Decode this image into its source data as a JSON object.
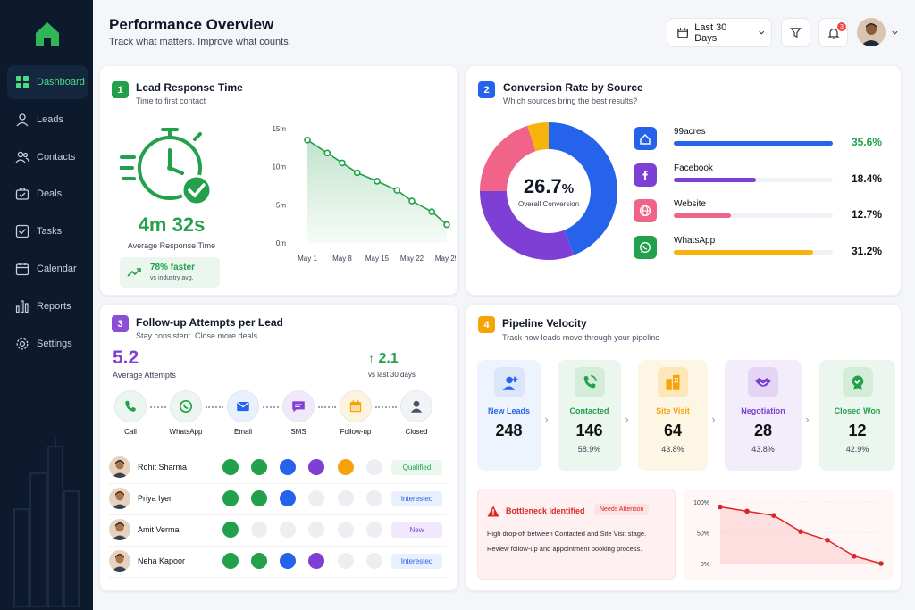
{
  "nav": {
    "items": [
      {
        "label": "Dashboard",
        "icon": "grid-icon",
        "active": true
      },
      {
        "label": "Leads",
        "icon": "user-icon"
      },
      {
        "label": "Contacts",
        "icon": "users-icon"
      },
      {
        "label": "Deals",
        "icon": "briefcase-icon"
      },
      {
        "label": "Tasks",
        "icon": "checkbox-icon"
      },
      {
        "label": "Calendar",
        "icon": "calendar-icon"
      },
      {
        "label": "Reports",
        "icon": "bar-chart-icon"
      },
      {
        "label": "Settings",
        "icon": "gear-icon"
      }
    ]
  },
  "header": {
    "title": "Performance Overview",
    "subtitle": "Track what matters. Improve what counts.",
    "date_range": "Last 30 Days",
    "notification_count": "3"
  },
  "lead_response": {
    "number": "1",
    "title": "Lead Response Time",
    "subtitle": "Time to first contact",
    "value": "4m 32s",
    "value_label": "Average Response Time",
    "faster": "78% faster",
    "faster_sub": "vs industry avg.",
    "accent": "#22a04b"
  },
  "conversion": {
    "number": "2",
    "title": "Conversion Rate by Source",
    "subtitle": "Which sources bring the best results?",
    "center_value": "26.7",
    "center_unit": "%",
    "center_label": "Overall Conversion",
    "sources": [
      {
        "name": "99acres",
        "pct": "35.6%",
        "value": 35.6,
        "color": "#2563eb",
        "icon": "home-icon"
      },
      {
        "name": "Facebook",
        "pct": "18.4%",
        "value": 18.4,
        "color": "#7e3fd4",
        "icon": "facebook-icon"
      },
      {
        "name": "Website",
        "pct": "12.7%",
        "value": 12.7,
        "color": "#f0648a",
        "icon": "globe-icon"
      },
      {
        "name": "WhatsApp",
        "pct": "31.2%",
        "value": 31.2,
        "color": "#f5b30b",
        "icon": "whatsapp-icon"
      }
    ]
  },
  "followup": {
    "number": "3",
    "title": "Follow-up Attempts per Lead",
    "subtitle": "Stay consistent. Close more deals.",
    "value": "5.2",
    "value_label": "Average Attempts",
    "delta": "2.1",
    "delta_label": "vs last 30 days",
    "steps": [
      {
        "label": "Call",
        "icon": "phone-icon"
      },
      {
        "label": "WhatsApp",
        "icon": "whatsapp-icon"
      },
      {
        "label": "Email",
        "icon": "email-icon"
      },
      {
        "label": "SMS",
        "icon": "sms-icon"
      },
      {
        "label": "Follow-up",
        "icon": "calendar-icon"
      },
      {
        "label": "Closed",
        "icon": "person-icon"
      }
    ],
    "leads": [
      {
        "name": "Rohit Sharma",
        "status": "Qualified",
        "done": [
          1,
          1,
          1,
          1,
          1,
          0
        ]
      },
      {
        "name": "Priya Iyer",
        "status": "Interested",
        "done": [
          1,
          1,
          1,
          0,
          0,
          0
        ]
      },
      {
        "name": "Amit Verma",
        "status": "New",
        "done": [
          1,
          0,
          0,
          0,
          0,
          0
        ]
      },
      {
        "name": "Neha Kapoor",
        "status": "Interested",
        "done": [
          1,
          1,
          1,
          1,
          0,
          0
        ]
      }
    ]
  },
  "pipeline": {
    "number": "4",
    "title": "Pipeline Velocity",
    "subtitle": "Track how leads move through your pipeline",
    "stages": [
      {
        "label": "New Leads",
        "value": "248",
        "pct": ""
      },
      {
        "label": "Contacted",
        "value": "146",
        "pct": "58.9%"
      },
      {
        "label": "Site Visit",
        "value": "64",
        "pct": "43.8%"
      },
      {
        "label": "Negotiation",
        "value": "28",
        "pct": "43.8%"
      },
      {
        "label": "Closed Won",
        "value": "12",
        "pct": "42.9%"
      }
    ],
    "bottleneck_title": "Bottleneck Identified",
    "bottleneck_tag": "Needs Attention",
    "bottleneck_line1": "High drop-off between Contacted and Site Visit stage.",
    "bottleneck_line2": "Review follow-up and appointment booking process."
  },
  "chart_data": [
    {
      "type": "area",
      "x_ticks": [
        "May 1",
        "May 8",
        "May 15",
        "May 22",
        "May 29"
      ],
      "y_ticks": [
        "15m",
        "10m",
        "5m",
        "0m"
      ],
      "ylim": [
        0,
        15
      ],
      "x": [
        1,
        5,
        8,
        11,
        15,
        19,
        22,
        26,
        29
      ],
      "values": [
        13.5,
        11.8,
        10.5,
        9.2,
        8.1,
        6.9,
        5.5,
        4.1,
        2.4
      ]
    },
    {
      "type": "pie",
      "categories": [
        "99acres",
        "Facebook",
        "Website",
        "WhatsApp"
      ],
      "values": [
        44,
        31,
        20,
        5
      ]
    },
    {
      "type": "area",
      "y_ticks": [
        "100%",
        "50%",
        "0%"
      ],
      "ylim": [
        0,
        100
      ],
      "values": [
        92,
        85,
        78,
        52,
        38,
        12,
        0
      ]
    }
  ]
}
